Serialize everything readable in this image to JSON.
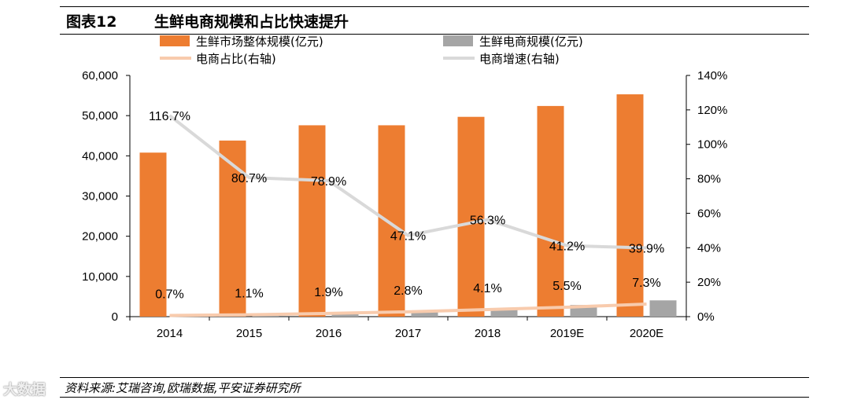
{
  "header": {
    "figure_number": "图表12",
    "title": "生鲜电商规模和占比快速提升"
  },
  "footer": {
    "source": "资料来源:艾瑞咨询,欧瑞数据,平安证券研究所",
    "watermark": "大数据"
  },
  "chart_data": {
    "type": "bar",
    "categories": [
      "2014",
      "2015",
      "2016",
      "2017",
      "2018",
      "2019E",
      "2020E"
    ],
    "left_axis": {
      "min": 0,
      "max": 60000,
      "step": 10000,
      "ticks": [
        "0",
        "10,000",
        "20,000",
        "30,000",
        "40,000",
        "50,000",
        "60,000"
      ]
    },
    "right_axis": {
      "min": 0,
      "max": 140,
      "step": 20,
      "ticks": [
        "0%",
        "20%",
        "40%",
        "60%",
        "80%",
        "100%",
        "120%",
        "140%"
      ]
    },
    "series": [
      {
        "name": "生鲜市场整体规模(亿元)",
        "kind": "bar",
        "axis": "left",
        "color": "#ED7D31",
        "values": [
          40800,
          43800,
          47600,
          47600,
          49700,
          52400,
          55300
        ]
      },
      {
        "name": "生鲜电商规模(亿元)",
        "kind": "bar",
        "axis": "left",
        "color": "#A5A5A5",
        "values": [
          290,
          500,
          900,
          1400,
          2050,
          2900,
          4050
        ]
      },
      {
        "name": "电商占比(右轴)",
        "kind": "line",
        "axis": "right",
        "color": "#F8CBAD",
        "values": [
          0.7,
          1.1,
          1.9,
          2.8,
          4.1,
          5.5,
          7.3
        ],
        "labels": [
          "0.7%",
          "1.1%",
          "1.9%",
          "2.8%",
          "4.1%",
          "5.5%",
          "7.3%"
        ]
      },
      {
        "name": "电商增速(右轴)",
        "kind": "line",
        "axis": "right",
        "color": "#D9D9D9",
        "values": [
          116.7,
          80.7,
          78.9,
          47.1,
          56.3,
          41.2,
          39.9
        ],
        "labels": [
          "116.7%",
          "80.7%",
          "78.9%",
          "47.1%",
          "56.3%",
          "41.2%",
          "39.9%"
        ]
      }
    ],
    "legend": [
      {
        "label": "生鲜市场整体规模(亿元)",
        "color": "#ED7D31",
        "shape": "box"
      },
      {
        "label": "生鲜电商规模(亿元)",
        "color": "#A5A5A5",
        "shape": "box"
      },
      {
        "label": "电商占比(右轴)",
        "color": "#F8CBAD",
        "shape": "line"
      },
      {
        "label": "电商增速(右轴)",
        "color": "#D9D9D9",
        "shape": "line"
      }
    ]
  }
}
